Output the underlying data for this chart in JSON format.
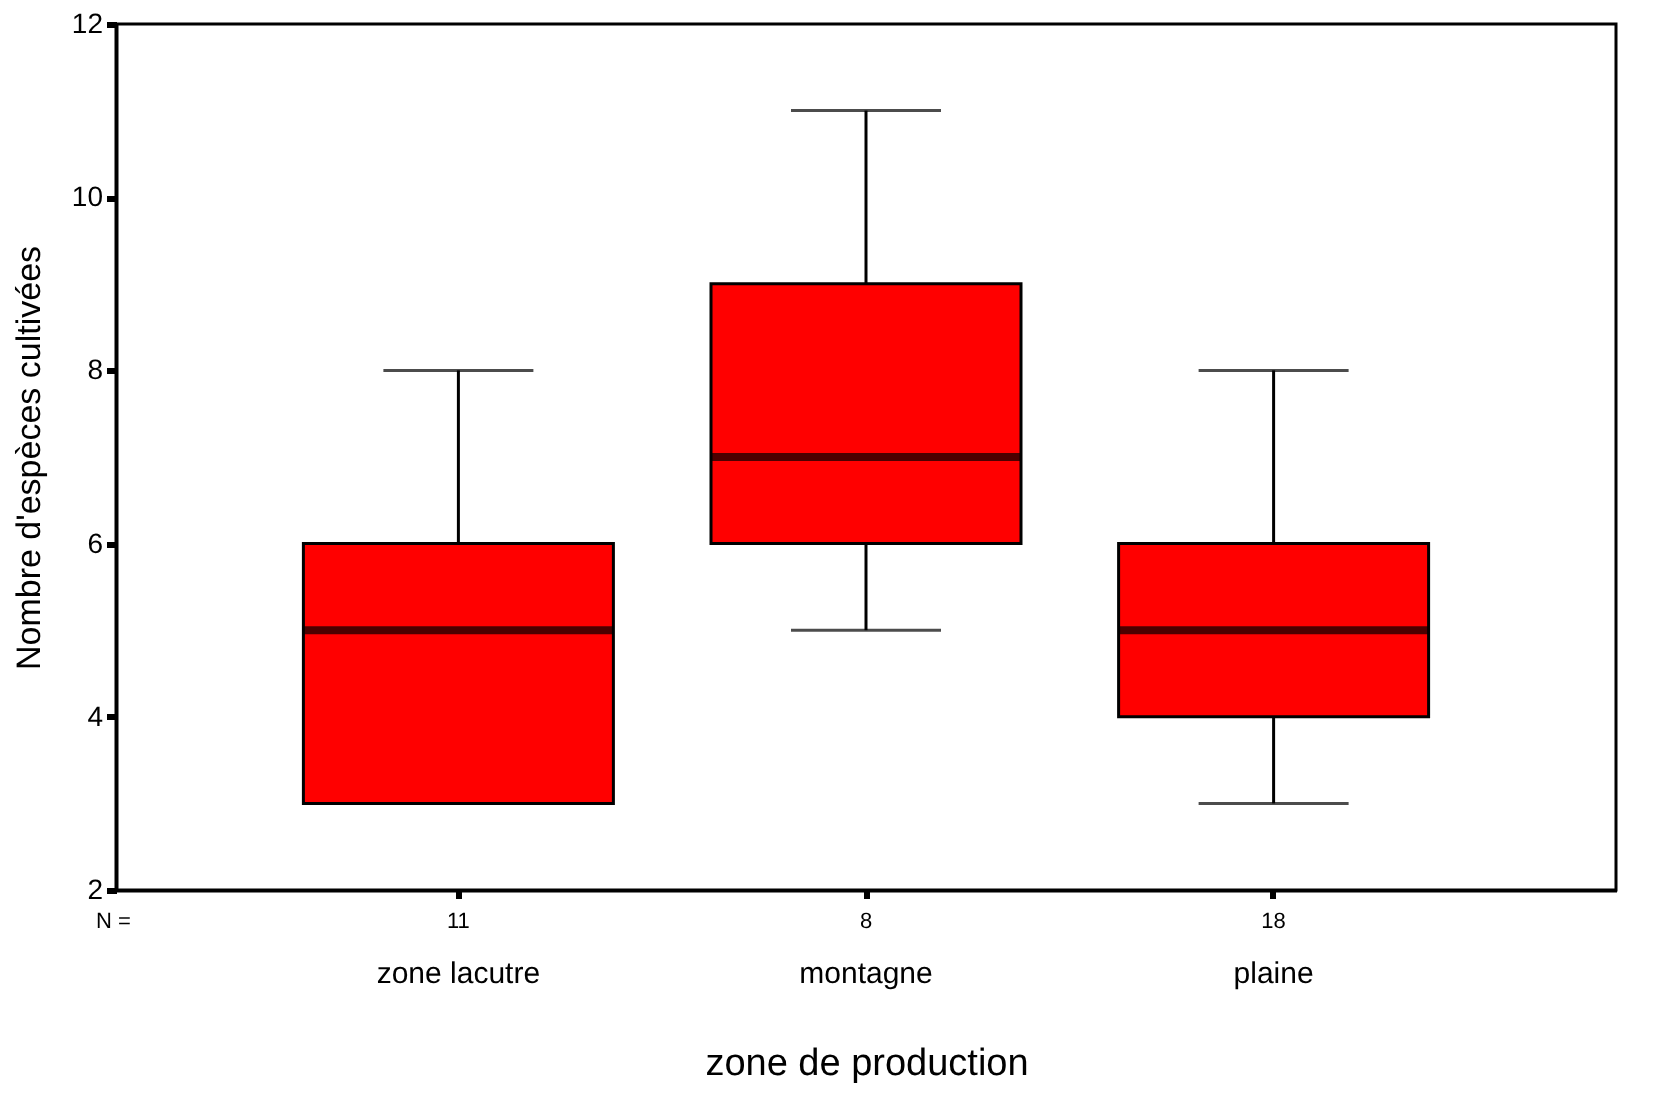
{
  "chart_data": {
    "type": "box",
    "xlabel": "zone de production",
    "ylabel": "Nombre d'espèces cultivées",
    "categories": [
      "zone lacutre",
      "montagne",
      "plaine"
    ],
    "series": [
      {
        "color": "#ff0000",
        "boxes": [
          {
            "low": 3,
            "q1": 3,
            "median": 5,
            "q3": 6,
            "high": 8
          },
          {
            "low": 5,
            "q1": 6,
            "median": 7,
            "q3": 9,
            "high": 11
          },
          {
            "low": 3,
            "q1": 4,
            "median": 5,
            "q3": 6,
            "high": 8
          }
        ]
      }
    ],
    "ylim": [
      2,
      12
    ],
    "yticks": [
      2,
      4,
      6,
      8,
      10,
      12
    ],
    "grid": false,
    "annotations": [
      "N =",
      "11",
      "8",
      "18"
    ]
  }
}
